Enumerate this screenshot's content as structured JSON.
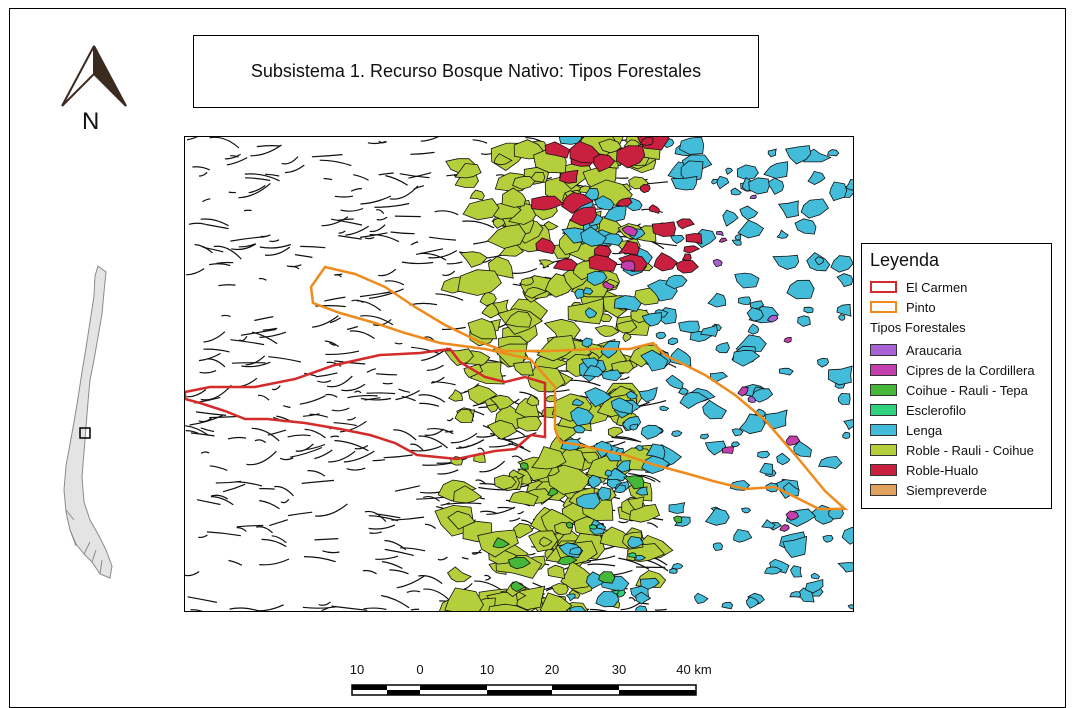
{
  "title": "Subsistema 1. Recurso Bosque Nativo: Tipos Forestales",
  "north_arrow": {
    "label": "N",
    "icon": "north-arrow-icon"
  },
  "locator_map": {
    "icon": "chile-locator-map-icon"
  },
  "legend": {
    "title": "Leyenda",
    "boundaries": [
      {
        "label": "El Carmen",
        "color": "#d42a2a"
      },
      {
        "label": "Pinto",
        "color": "#ef8a1d"
      }
    ],
    "subtitle": "Tipos Forestales",
    "types": [
      {
        "label": "Araucaria",
        "color": "#a962d6"
      },
      {
        "label": "Cipres de la Cordillera",
        "color": "#c43fad"
      },
      {
        "label": "Coihue - Rauli - Tepa",
        "color": "#45b83a"
      },
      {
        "label": "Esclerofilo",
        "color": "#2fd37e"
      },
      {
        "label": "Lenga",
        "color": "#43bcd9"
      },
      {
        "label": "Roble - Rauli - Coihue",
        "color": "#b5cf3c"
      },
      {
        "label": "Roble-Hualo",
        "color": "#c9203f"
      },
      {
        "label": "Siempreverde",
        "color": "#e3a15e"
      }
    ]
  },
  "scale_bar": {
    "labels": [
      "10",
      "0",
      "10",
      "20",
      "30",
      "40 km"
    ]
  }
}
